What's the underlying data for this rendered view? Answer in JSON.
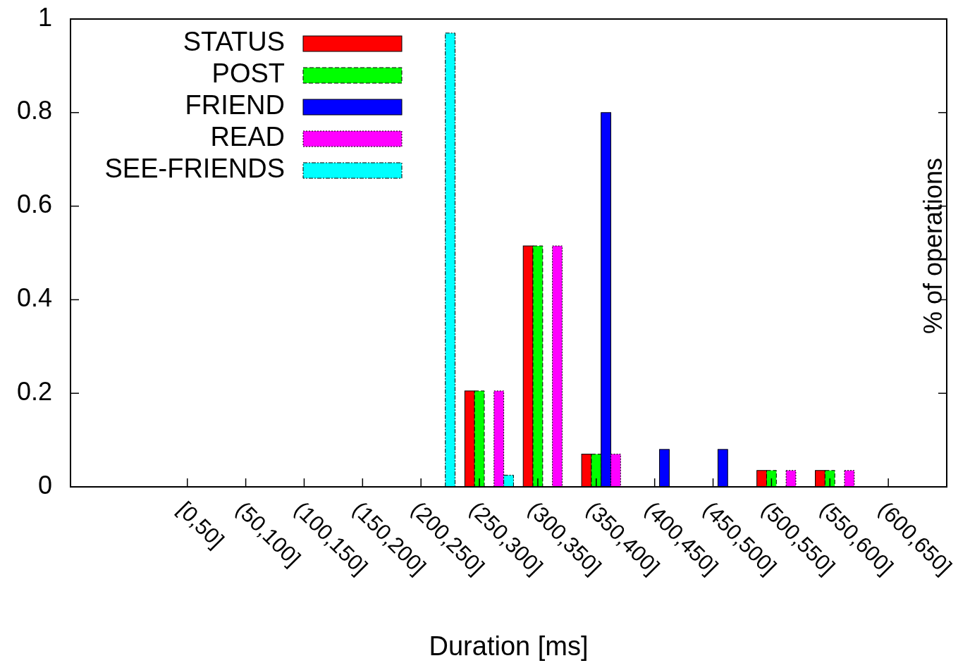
{
  "chart_data": {
    "type": "bar",
    "xlabel": "Duration [ms]",
    "ylabel": "% of operations",
    "categories": [
      "[0,50]",
      "(50,100]",
      "(100,150]",
      "(150,200]",
      "(200,250]",
      "(250,300]",
      "(300,350]",
      "(350,400]",
      "(400,450]",
      "(450,500]",
      "(500,550]",
      "(550,600]",
      "(600,650]"
    ],
    "series": [
      {
        "name": "STATUS",
        "color": "#ff0000",
        "values": [
          0,
          0,
          0,
          0,
          0,
          0.205,
          0.515,
          0.07,
          0,
          0,
          0.035,
          0.035,
          0
        ]
      },
      {
        "name": "POST",
        "color": "#00ff00",
        "values": [
          0,
          0,
          0,
          0,
          0,
          0.205,
          0.515,
          0.07,
          0,
          0,
          0.035,
          0.035,
          0
        ]
      },
      {
        "name": "FRIEND",
        "color": "#0000ff",
        "values": [
          0,
          0,
          0,
          0,
          0,
          0,
          0,
          0.8,
          0.08,
          0.08,
          0,
          0,
          0
        ]
      },
      {
        "name": "READ",
        "color": "#ff00ff",
        "values": [
          0,
          0,
          0,
          0,
          0,
          0.205,
          0.515,
          0.07,
          0,
          0,
          0.035,
          0.035,
          0
        ]
      },
      {
        "name": "SEE-FRIENDS",
        "color": "#00ffff",
        "values": [
          0,
          0,
          0,
          0,
          0.97,
          0.025,
          null,
          0,
          0,
          0,
          0,
          0,
          0
        ]
      }
    ],
    "ylim": [
      0,
      1
    ],
    "yticks": [
      0,
      0.2,
      0.4,
      0.6,
      0.8,
      1
    ],
    "legend": "top left"
  }
}
